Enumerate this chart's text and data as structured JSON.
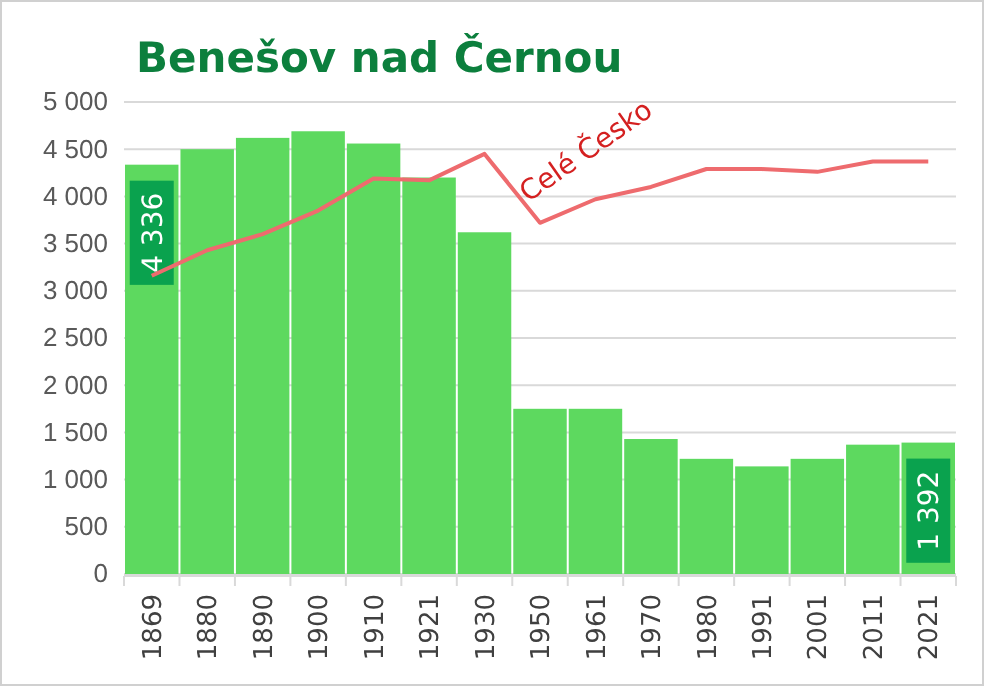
{
  "chart_data": {
    "type": "bar",
    "title": "Benešov nad Černou",
    "categories": [
      "1869",
      "1880",
      "1890",
      "1900",
      "1910",
      "1921",
      "1930",
      "1950",
      "1961",
      "1970",
      "1980",
      "1991",
      "2001",
      "2011",
      "2021"
    ],
    "series": [
      {
        "color": "#5dd95f",
        "values": [
          4336,
          4500,
          4620,
          4690,
          4560,
          4200,
          3620,
          1750,
          1750,
          1430,
          1220,
          1140,
          1220,
          1370,
          1392
        ],
        "value_labels": [
          "4 336",
          null,
          null,
          null,
          null,
          null,
          null,
          null,
          null,
          null,
          null,
          null,
          null,
          null,
          "1 392"
        ]
      },
      {
        "type": "line",
        "name": "Celé Česko",
        "color": "#ee6b6e",
        "values": [
          3160,
          3430,
          3600,
          3850,
          4190,
          4170,
          4450,
          3720,
          3970,
          4100,
          4290,
          4290,
          4260,
          4370,
          4370
        ]
      }
    ],
    "ylim": [
      0,
      5000
    ],
    "yticks": [
      {
        "value": 0,
        "label": "0"
      },
      {
        "value": 500,
        "label": "500"
      },
      {
        "value": 1000,
        "label": "1 000"
      },
      {
        "value": 1500,
        "label": "1 500"
      },
      {
        "value": 2000,
        "label": "2 000"
      },
      {
        "value": 2500,
        "label": "2 500"
      },
      {
        "value": 3000,
        "label": "3 000"
      },
      {
        "value": 3500,
        "label": "3 500"
      },
      {
        "value": 4000,
        "label": "4 000"
      },
      {
        "value": 4500,
        "label": "4 500"
      },
      {
        "value": 5000,
        "label": "5 000"
      }
    ],
    "grid": "y",
    "legend": false,
    "marker": "none",
    "line_style": "solid"
  }
}
